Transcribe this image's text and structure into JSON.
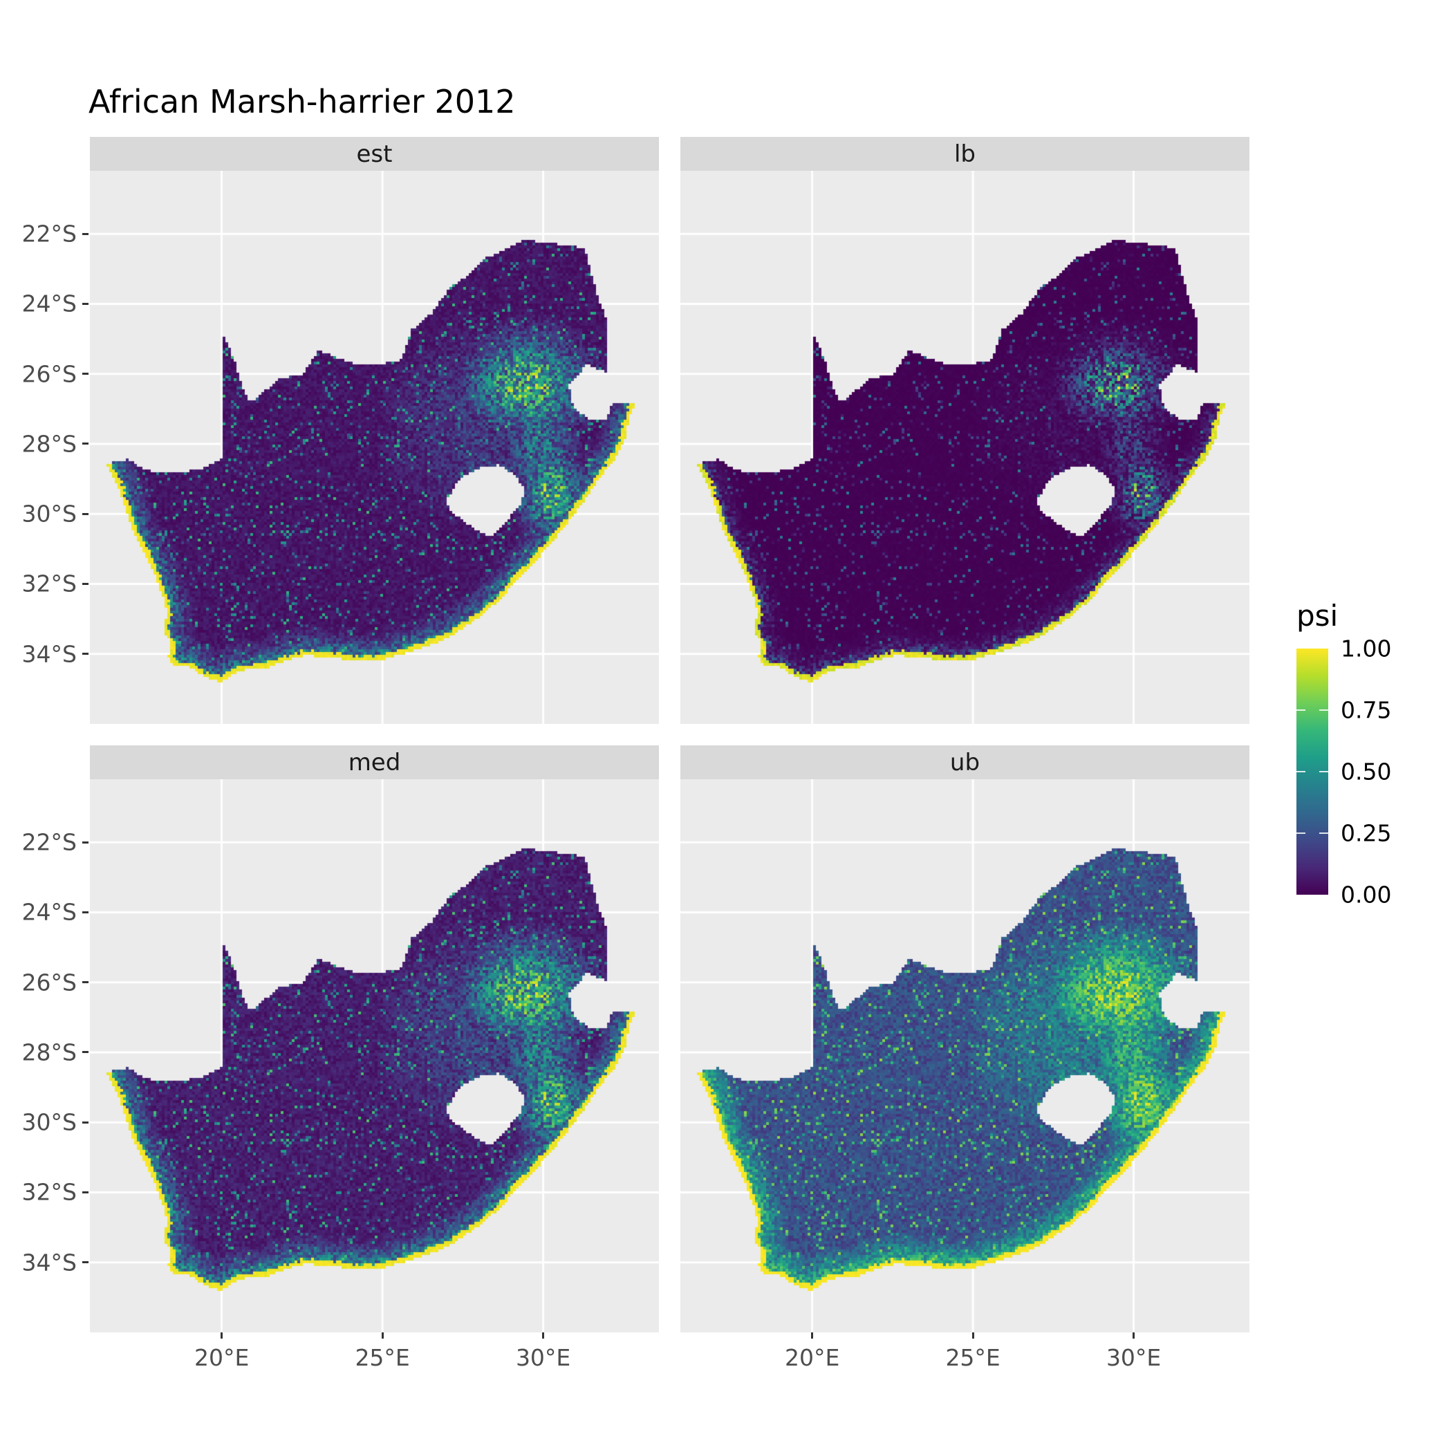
{
  "title": "African Marsh-harrier 2012",
  "colors": {
    "background": "#FFFFFF",
    "panel_bg": "#EBEBEB",
    "strip_bg": "#D9D9D9",
    "strip_text": "#1A1A1A",
    "grid": "#FFFFFF",
    "axis_text": "#4D4D4D",
    "tick_mark": "#333333",
    "title_text": "#000000",
    "viridis": [
      "#440154",
      "#482878",
      "#3E4A89",
      "#31688E",
      "#26828E",
      "#1F9E89",
      "#35B779",
      "#6ECE58",
      "#B5DE2B",
      "#FDE725"
    ]
  },
  "axes": {
    "x_ticks": [
      "20°E",
      "25°E",
      "30°E"
    ],
    "x_values": [
      20,
      25,
      30
    ],
    "y_ticks": [
      "22°S",
      "24°S",
      "26°S",
      "28°S",
      "30°S",
      "32°S",
      "34°S"
    ],
    "y_values": [
      -22,
      -24,
      -26,
      -28,
      -30,
      -32,
      -34
    ]
  },
  "legend": {
    "title": "psi",
    "labels": [
      "1.00",
      "0.75",
      "0.50",
      "0.25",
      "0.00"
    ],
    "values": [
      1,
      0.75,
      0.5,
      0.25,
      0
    ]
  },
  "chart_data": {
    "type": "heatmap",
    "title": "African Marsh-harrier 2012",
    "variable": "psi",
    "value_range": [
      0,
      1
    ],
    "region": "South Africa occupancy raster (Lesotho and Eswatini shown as holes)",
    "colormap": "viridis",
    "legend_position": "right",
    "grid": true,
    "facets": [
      {
        "label": "est",
        "gamma": 1.15
      },
      {
        "label": "lb",
        "gamma": 2.3
      },
      {
        "label": "med",
        "gamma": 1.0
      },
      {
        "label": "ub",
        "gamma": 0.55
      }
    ],
    "extent": {
      "lon": [
        15.9,
        33.6
      ],
      "lat": [
        -36.0,
        -20.2
      ]
    },
    "coast_points": 36,
    "outline": [
      [
        16.45,
        -28.6
      ],
      [
        16.8,
        -29.3
      ],
      [
        17.05,
        -29.95
      ],
      [
        17.25,
        -30.55
      ],
      [
        17.6,
        -31.1
      ],
      [
        17.88,
        -31.65
      ],
      [
        18.2,
        -32.45
      ],
      [
        18.32,
        -32.85
      ],
      [
        18.18,
        -33.3
      ],
      [
        18.43,
        -33.72
      ],
      [
        18.33,
        -34.1
      ],
      [
        18.48,
        -34.35
      ],
      [
        19.0,
        -34.36
      ],
      [
        19.42,
        -34.64
      ],
      [
        20.0,
        -34.82
      ],
      [
        20.55,
        -34.47
      ],
      [
        21.3,
        -34.43
      ],
      [
        22.15,
        -34.15
      ],
      [
        22.6,
        -34.05
      ],
      [
        23.4,
        -34.1
      ],
      [
        24.2,
        -34.2
      ],
      [
        24.85,
        -34.2
      ],
      [
        25.65,
        -34.0
      ],
      [
        26.45,
        -33.77
      ],
      [
        27.1,
        -33.52
      ],
      [
        27.9,
        -33.03
      ],
      [
        28.6,
        -32.5
      ],
      [
        29.25,
        -31.85
      ],
      [
        30.0,
        -31.1
      ],
      [
        30.65,
        -30.4
      ],
      [
        31.1,
        -29.85
      ],
      [
        31.75,
        -29.0
      ],
      [
        32.3,
        -28.35
      ],
      [
        32.55,
        -27.85
      ],
      [
        32.68,
        -27.2
      ],
      [
        32.89,
        -26.86
      ],
      [
        32.13,
        -26.84
      ],
      [
        31.97,
        -27.31
      ],
      [
        31.45,
        -27.3
      ],
      [
        30.95,
        -27.0
      ],
      [
        30.8,
        -26.35
      ],
      [
        31.35,
        -25.73
      ],
      [
        31.95,
        -25.95
      ],
      [
        32.02,
        -25.3
      ],
      [
        31.99,
        -24.5
      ],
      [
        31.65,
        -23.65
      ],
      [
        31.3,
        -22.4
      ],
      [
        30.45,
        -22.3
      ],
      [
        29.37,
        -22.17
      ],
      [
        28.8,
        -22.45
      ],
      [
        28.2,
        -22.7
      ],
      [
        27.65,
        -23.2
      ],
      [
        27.1,
        -23.55
      ],
      [
        26.5,
        -24.3
      ],
      [
        25.9,
        -24.75
      ],
      [
        25.6,
        -25.6
      ],
      [
        25.0,
        -25.72
      ],
      [
        24.2,
        -25.75
      ],
      [
        23.0,
        -25.32
      ],
      [
        22.55,
        -26.0
      ],
      [
        21.8,
        -26.15
      ],
      [
        20.9,
        -26.82
      ],
      [
        20.65,
        -26.4
      ],
      [
        20.4,
        -25.6
      ],
      [
        20.0,
        -24.77
      ],
      [
        19.99,
        -28.43
      ],
      [
        19.3,
        -28.73
      ],
      [
        18.5,
        -28.85
      ],
      [
        17.6,
        -28.75
      ],
      [
        17.1,
        -28.45
      ],
      [
        16.75,
        -28.48
      ]
    ],
    "lesotho": [
      [
        27.0,
        -29.63
      ],
      [
        27.3,
        -29.1
      ],
      [
        27.55,
        -28.9
      ],
      [
        28.05,
        -28.68
      ],
      [
        28.65,
        -28.6
      ],
      [
        29.12,
        -28.9
      ],
      [
        29.45,
        -29.3
      ],
      [
        29.3,
        -29.75
      ],
      [
        28.9,
        -30.15
      ],
      [
        28.35,
        -30.65
      ],
      [
        27.9,
        -30.45
      ],
      [
        27.4,
        -30.12
      ],
      [
        27.1,
        -29.9
      ]
    ],
    "hotspots": [
      {
        "lon": 29.5,
        "lat": -26.3,
        "sx": 1.3,
        "sy": 1.0,
        "amp": 0.95
      },
      {
        "lon": 30.25,
        "lat": -29.4,
        "sx": 0.7,
        "sy": 0.9,
        "amp": 0.92
      },
      {
        "lon": 29.9,
        "lat": -27.9,
        "sx": 0.8,
        "sy": 1.3,
        "amp": 0.6
      },
      {
        "lon": 28.0,
        "lat": -27.5,
        "sx": 2.5,
        "sy": 2.3,
        "amp": 0.3
      }
    ]
  }
}
